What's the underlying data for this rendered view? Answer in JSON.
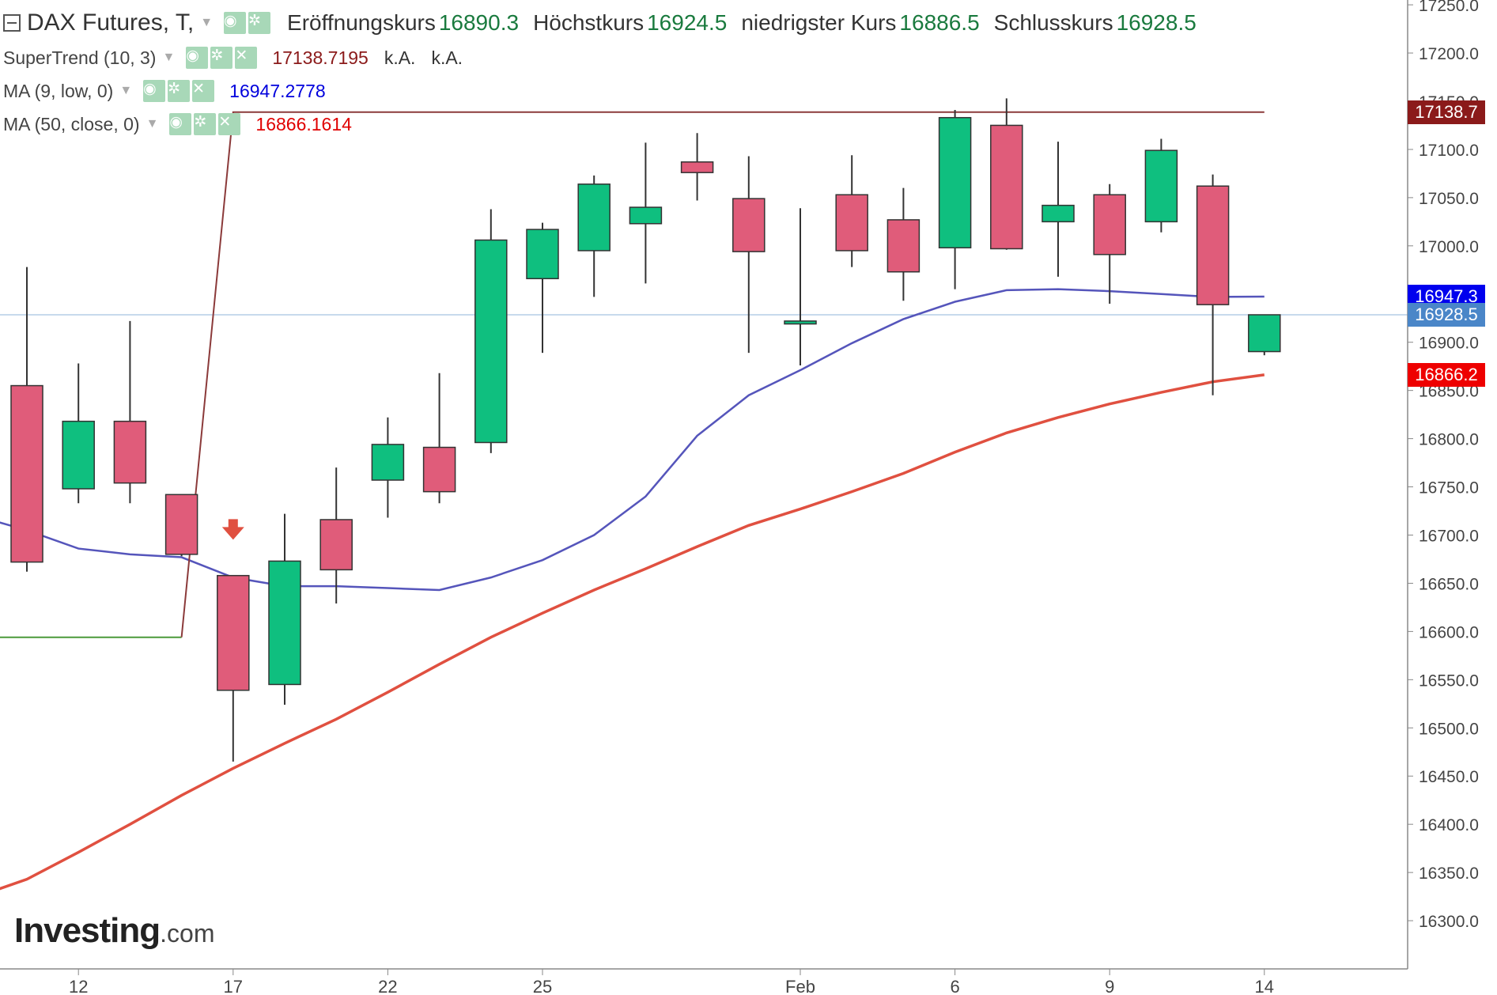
{
  "header": {
    "symbol": "DAX Futures, T,",
    "open_label": "Eröffnungskurs",
    "open_value": "16890.3",
    "high_label": "Höchstkurs",
    "high_value": "16924.5",
    "low_label": "niedrigster Kurs",
    "low_value": "16886.5",
    "close_label": "Schlusskurs",
    "close_value": "16928.5"
  },
  "indicators": [
    {
      "name": "SuperTrend (10, 3)",
      "value": "17138.7195",
      "extra1": "k.A.",
      "extra2": "k.A.",
      "color": "#8b1a1a"
    },
    {
      "name": "MA (9, low, 0)",
      "value": "16947.2778",
      "color": "#0000dd"
    },
    {
      "name": "MA (50, close, 0)",
      "value": "16866.1614",
      "color": "#e00000"
    }
  ],
  "brand": {
    "name": "Investing",
    "suffix": ".com"
  },
  "price_tags": [
    {
      "text": "17138.7",
      "value": 17138.7,
      "color": "#8b1a1a"
    },
    {
      "text": "16947.3",
      "value": 16947.3,
      "color": "#0000ee"
    },
    {
      "text": "16928.5",
      "value": 16928.5,
      "color": "#4a86c8"
    },
    {
      "text": "16866.2",
      "value": 16866.2,
      "color": "#ee0000"
    }
  ],
  "chart_data": {
    "type": "candlestick",
    "x_ticks": [
      {
        "label": "12",
        "index": 1
      },
      {
        "label": "17",
        "index": 4
      },
      {
        "label": "22",
        "index": 7
      },
      {
        "label": "25",
        "index": 10
      },
      {
        "label": "Feb",
        "index": 15
      },
      {
        "label": "6",
        "index": 18
      },
      {
        "label": "9",
        "index": 21
      },
      {
        "label": "14",
        "index": 24
      }
    ],
    "y_ticks": [
      16300,
      16350,
      16400,
      16450,
      16500,
      16550,
      16600,
      16650,
      16700,
      16750,
      16800,
      16850,
      16900,
      16950,
      17000,
      17050,
      17100,
      17150,
      17200,
      17250
    ],
    "y_tick_labels": [
      "16300.0",
      "16350.0",
      "16400.0",
      "16450.0",
      "16500.0",
      "16550.0",
      "16600.0",
      "16650.0",
      "16700.0",
      "16750.0",
      "16800.0",
      "16850.0",
      "16900.0",
      "16950.0",
      "17000.0",
      "17050.0",
      "17100.0",
      "17150.0",
      "17200.0",
      "17250.0"
    ],
    "ylim": [
      16250,
      17255
    ],
    "colors": {
      "up": "#0fbf7f",
      "down": "#e05c7a",
      "wick": "#333333"
    },
    "candles": [
      {
        "o": 16855,
        "h": 16978,
        "l": 16662,
        "c": 16672
      },
      {
        "o": 16748,
        "h": 16878,
        "l": 16733,
        "c": 16818
      },
      {
        "o": 16818,
        "h": 16922,
        "l": 16733,
        "c": 16754
      },
      {
        "o": 16742,
        "h": 16742,
        "l": 16678,
        "c": 16680
      },
      {
        "o": 16658,
        "h": 16658,
        "l": 16465,
        "c": 16539
      },
      {
        "o": 16545,
        "h": 16722,
        "l": 16524,
        "c": 16673
      },
      {
        "o": 16716,
        "h": 16770,
        "l": 16629,
        "c": 16664
      },
      {
        "o": 16757,
        "h": 16822,
        "l": 16718,
        "c": 16794
      },
      {
        "o": 16791,
        "h": 16868,
        "l": 16733,
        "c": 16745
      },
      {
        "o": 16796,
        "h": 17038,
        "l": 16785,
        "c": 17006
      },
      {
        "o": 16966,
        "h": 17024,
        "l": 16889,
        "c": 17017
      },
      {
        "o": 16995,
        "h": 17073,
        "l": 16947,
        "c": 17064
      },
      {
        "o": 17023,
        "h": 17107,
        "l": 16961,
        "c": 17040
      },
      {
        "o": 17087,
        "h": 17117,
        "l": 17047,
        "c": 17076
      },
      {
        "o": 17049,
        "h": 17093,
        "l": 16889,
        "c": 16994
      },
      {
        "o": 16919,
        "h": 17039,
        "l": 16876,
        "c": 16922
      },
      {
        "o": 17053,
        "h": 17094,
        "l": 16978,
        "c": 16995
      },
      {
        "o": 17027,
        "h": 17060,
        "l": 16943,
        "c": 16973
      },
      {
        "o": 16998,
        "h": 17141,
        "l": 16955,
        "c": 17133
      },
      {
        "o": 17125,
        "h": 17153,
        "l": 16996,
        "c": 16997
      },
      {
        "o": 17025,
        "h": 17108,
        "l": 16968,
        "c": 17042
      },
      {
        "o": 17053,
        "h": 17064,
        "l": 16940,
        "c": 16991
      },
      {
        "o": 17025,
        "h": 17111,
        "l": 17014,
        "c": 17099
      },
      {
        "o": 17062,
        "h": 17074,
        "l": 16845,
        "c": 16939
      },
      {
        "o": 16890.3,
        "h": 16924.5,
        "l": 16886.5,
        "c": 16928.5
      }
    ],
    "series": [
      {
        "name": "MA (9, low, 0)",
        "color": "#5555bb",
        "x": [
          -1.5,
          0,
          1,
          2,
          3,
          4,
          5,
          6,
          7,
          8,
          9,
          10,
          11,
          12,
          13,
          14,
          15,
          16,
          17,
          18,
          19,
          20,
          21,
          22,
          23,
          24
        ],
        "values": [
          16728,
          16705,
          16686,
          16680,
          16677,
          16656,
          16647,
          16647,
          16645,
          16643,
          16656,
          16674,
          16700,
          16740,
          16803,
          16845,
          16871,
          16899,
          16924,
          16942,
          16954,
          16955,
          16953,
          16950,
          16947,
          16947.3
        ]
      },
      {
        "name": "MA (50, close, 0)",
        "color": "#e05040",
        "x": [
          -1.5,
          0,
          1,
          2,
          3,
          4,
          5,
          6,
          7,
          8,
          9,
          10,
          11,
          12,
          13,
          14,
          15,
          16,
          17,
          18,
          19,
          20,
          21,
          22,
          23,
          24
        ],
        "values": [
          16315,
          16343,
          16371,
          16400,
          16430,
          16458,
          16484,
          16509,
          16537,
          16566,
          16594,
          16619,
          16643,
          16665,
          16688,
          16710,
          16727,
          16745,
          16764,
          16786,
          16806,
          16822,
          16836,
          16848,
          16859,
          16866.2
        ]
      },
      {
        "name": "SuperTrend (10, 3)",
        "segments": [
          {
            "color": "#4a9a3a",
            "x": [
              -1.5,
              3
            ],
            "values": [
              16594,
              16594
            ]
          },
          {
            "color": "#8b3a3a",
            "x": [
              3,
              4,
              24
            ],
            "values": [
              16594,
              17138.7,
              17138.7
            ]
          }
        ]
      }
    ],
    "signals": [
      {
        "type": "sell-arrow",
        "index": 4,
        "price": 16705,
        "color": "#e05040"
      }
    ],
    "current_price_line": 16928.5
  }
}
